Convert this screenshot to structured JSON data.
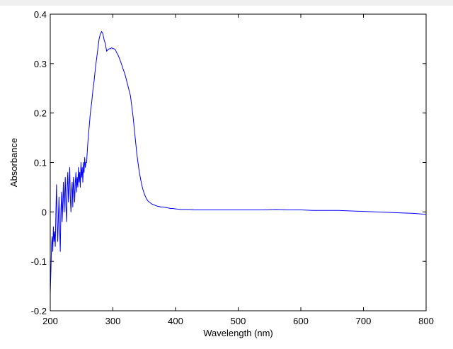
{
  "chart_data": {
    "type": "line",
    "xlabel": "Wavelength (nm)",
    "ylabel": "Absorbance",
    "xlim": [
      200,
      800
    ],
    "ylim": [
      -0.2,
      0.4
    ],
    "x_ticks": [
      "200",
      "300",
      "400",
      "500",
      "600",
      "700",
      "800"
    ],
    "y_ticks": [
      "-0.2",
      "-0.1",
      "0",
      "0.1",
      "0.2",
      "0.3",
      "0.4"
    ],
    "grid": false,
    "legend": "none",
    "series": [
      {
        "color": "#0000ff",
        "x": [
          200,
          201,
          202,
          203,
          204,
          205,
          206,
          207,
          208,
          209,
          210,
          211,
          212,
          213,
          214,
          215,
          216,
          217,
          218,
          219,
          220,
          221,
          222,
          223,
          224,
          225,
          226,
          227,
          228,
          229,
          230,
          231,
          232,
          233,
          234,
          235,
          236,
          237,
          238,
          239,
          240,
          241,
          242,
          243,
          244,
          245,
          246,
          247,
          248,
          249,
          250,
          251,
          252,
          253,
          254,
          255,
          256,
          257,
          258,
          259,
          260,
          262,
          264,
          266,
          268,
          270,
          272,
          274,
          276,
          278,
          280,
          282,
          284,
          286,
          288,
          290,
          292,
          294,
          296,
          298,
          300,
          302,
          304,
          306,
          308,
          310,
          312,
          314,
          316,
          318,
          320,
          322,
          324,
          326,
          328,
          330,
          332,
          334,
          336,
          338,
          340,
          342,
          344,
          346,
          348,
          350,
          352,
          354,
          356,
          358,
          360,
          362,
          364,
          366,
          368,
          370,
          372,
          374,
          376,
          378,
          380,
          384,
          388,
          392,
          396,
          400,
          410,
          420,
          430,
          440,
          450,
          460,
          480,
          500,
          520,
          540,
          560,
          580,
          600,
          620,
          640,
          660,
          680,
          700,
          720,
          740,
          760,
          780,
          800
        ],
        "y": [
          -0.165,
          -0.12,
          -0.07,
          -0.05,
          -0.08,
          -0.03,
          -0.06,
          -0.04,
          -0.07,
          0.0,
          0.055,
          -0.02,
          -0.06,
          -0.01,
          0.03,
          -0.03,
          -0.08,
          0.0,
          0.04,
          -0.02,
          0.02,
          0.06,
          0.0,
          0.03,
          0.07,
          0.01,
          -0.02,
          0.05,
          0.08,
          0.02,
          0.05,
          0.09,
          0.03,
          0.0,
          0.04,
          0.06,
          0.01,
          0.07,
          0.05,
          0.02,
          0.06,
          0.08,
          0.04,
          0.07,
          0.05,
          0.09,
          0.06,
          0.08,
          0.05,
          0.1,
          0.07,
          0.09,
          0.06,
          0.1,
          0.08,
          0.11,
          0.09,
          0.1,
          0.1,
          0.12,
          0.14,
          0.17,
          0.2,
          0.22,
          0.245,
          0.265,
          0.29,
          0.31,
          0.33,
          0.35,
          0.36,
          0.365,
          0.36,
          0.348,
          0.34,
          0.325,
          0.328,
          0.33,
          0.33,
          0.332,
          0.33,
          0.33,
          0.328,
          0.322,
          0.318,
          0.312,
          0.305,
          0.298,
          0.29,
          0.283,
          0.275,
          0.265,
          0.255,
          0.245,
          0.235,
          0.215,
          0.195,
          0.17,
          0.145,
          0.12,
          0.1,
          0.082,
          0.068,
          0.055,
          0.045,
          0.037,
          0.031,
          0.026,
          0.022,
          0.02,
          0.018,
          0.016,
          0.015,
          0.014,
          0.013,
          0.012,
          0.011,
          0.011,
          0.01,
          0.01,
          0.01,
          0.009,
          0.008,
          0.007,
          0.007,
          0.006,
          0.005,
          0.005,
          0.004,
          0.004,
          0.004,
          0.004,
          0.004,
          0.004,
          0.004,
          0.004,
          0.005,
          0.004,
          0.004,
          0.003,
          0.003,
          0.003,
          0.002,
          0.001,
          0.0,
          -0.001,
          -0.002,
          -0.003,
          -0.005
        ]
      }
    ]
  }
}
